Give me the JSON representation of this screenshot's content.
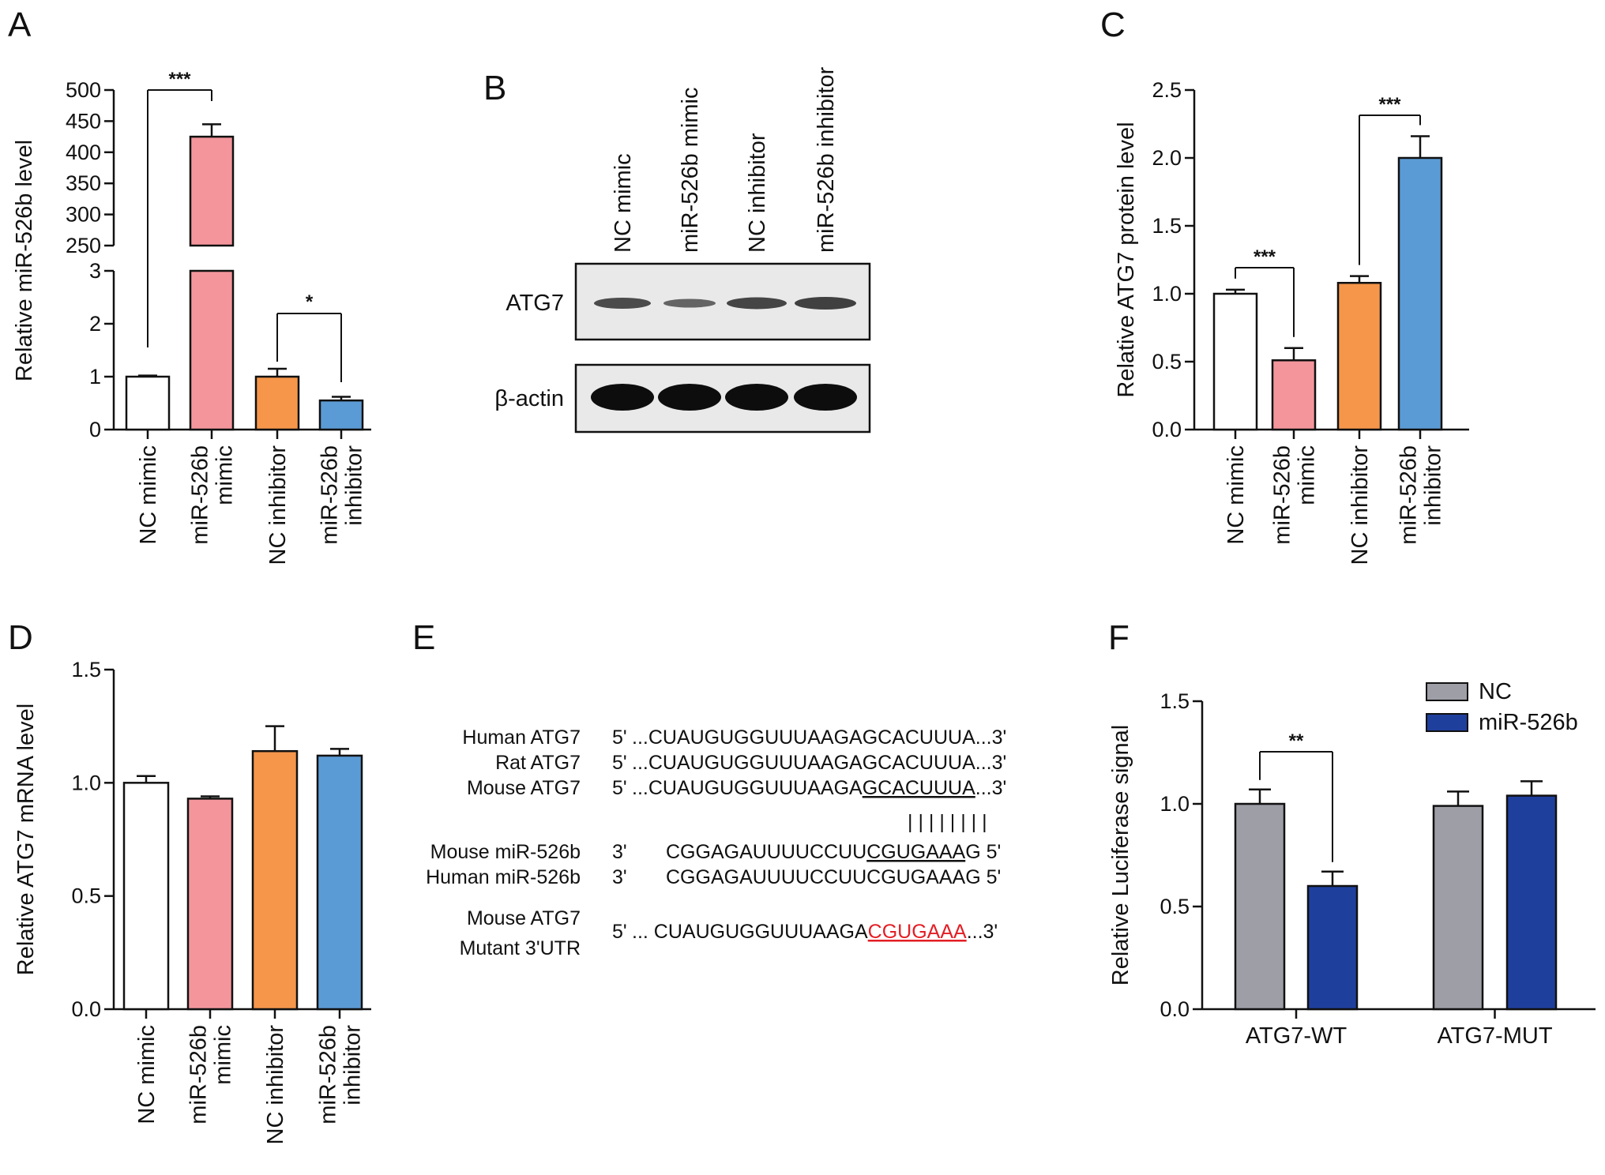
{
  "panels": {
    "A": {
      "letter": "A",
      "chart_data": {
        "type": "bar",
        "ylabel": "Relative miR-526b level",
        "categories": [
          "NC mimic",
          "miR-526b mimic",
          "NC inhibitor",
          "miR-526b inhibitor"
        ],
        "category_lines": [
          [
            "NC mimic"
          ],
          [
            "miR-526b",
            "mimic"
          ],
          [
            "NC inhibitor"
          ],
          [
            "miR-526b",
            "inhibitor"
          ]
        ],
        "values": [
          1.0,
          425,
          1.0,
          0.55
        ],
        "errors": [
          0.02,
          20,
          0.15,
          0.07
        ],
        "colors": [
          "#ffffff",
          "#f4959c",
          "#f5964a",
          "#5b9bd5"
        ],
        "broken_axis": true,
        "ylim_lower": [
          0,
          3
        ],
        "yticks_lower": [
          "0",
          "1",
          "2",
          "3"
        ],
        "ylim_upper": [
          250,
          500
        ],
        "yticks_upper": [
          "250",
          "300",
          "350",
          "400",
          "450",
          "500"
        ],
        "significance": [
          {
            "from": 0,
            "to": 1,
            "label": "***"
          },
          {
            "from": 2,
            "to": 3,
            "label": "*"
          }
        ]
      }
    },
    "B": {
      "letter": "B",
      "lanes": [
        "NC mimic",
        "miR-526b mimic",
        "NC inhibitor",
        "miR-526b inhibitor"
      ],
      "blot_labels": [
        "ATG7",
        "β-actin"
      ]
    },
    "C": {
      "letter": "C",
      "chart_data": {
        "type": "bar",
        "ylabel": "Relative ATG7 protein level",
        "categories": [
          "NC mimic",
          "miR-526b mimic",
          "NC inhibitor",
          "miR-526b inhibitor"
        ],
        "category_lines": [
          [
            "NC mimic"
          ],
          [
            "miR-526b",
            "mimic"
          ],
          [
            "NC inhibitor"
          ],
          [
            "miR-526b",
            "inhibitor"
          ]
        ],
        "values": [
          1.0,
          0.51,
          1.08,
          2.0
        ],
        "errors": [
          0.03,
          0.09,
          0.05,
          0.16
        ],
        "colors": [
          "#ffffff",
          "#f4959c",
          "#f5964a",
          "#5b9bd5"
        ],
        "ylim": [
          0,
          2.5
        ],
        "yticks": [
          "0.0",
          "0.5",
          "1.0",
          "1.5",
          "2.0",
          "2.5"
        ],
        "significance": [
          {
            "from": 0,
            "to": 1,
            "label": "***"
          },
          {
            "from": 2,
            "to": 3,
            "label": "***"
          }
        ]
      }
    },
    "D": {
      "letter": "D",
      "chart_data": {
        "type": "bar",
        "ylabel": "Relative ATG7 mRNA level",
        "categories": [
          "NC mimic",
          "miR-526b mimic",
          "NC inhibitor",
          "miR-526b inhibitor"
        ],
        "category_lines": [
          [
            "NC mimic"
          ],
          [
            "miR-526b",
            "mimic"
          ],
          [
            "NC inhibitor"
          ],
          [
            "miR-526b",
            "inhibitor"
          ]
        ],
        "values": [
          1.0,
          0.93,
          1.14,
          1.12
        ],
        "errors": [
          0.03,
          0.01,
          0.11,
          0.03
        ],
        "colors": [
          "#ffffff",
          "#f4959c",
          "#f5964a",
          "#5b9bd5"
        ],
        "ylim": [
          0,
          1.5
        ],
        "yticks": [
          "0.0",
          "0.5",
          "1.0",
          "1.5"
        ],
        "significance": []
      }
    },
    "E": {
      "letter": "E",
      "rows": [
        {
          "name": "Human ATG7",
          "prefix": "5'",
          "seq": "...CUAUGUGGUUUAAGAGCACUUUA...3'"
        },
        {
          "name": "Rat ATG7",
          "prefix": "5'",
          "seq": "...CUAUGUGGUUUAAGAGCACUUUA...3'"
        },
        {
          "name": "Mouse ATG7",
          "prefix": "5'",
          "seq_before": "...CUAUGUGGUUUAAGA",
          "seq_underlined": "GCACUUUA",
          "seq_after": "...3'"
        },
        {
          "name": "Mouse miR-526b",
          "prefix": "3'",
          "seq_before": "CGGAGAUUUUCCUU",
          "seq_underlined": "CGUGAAA",
          "seq_after": "G 5'"
        },
        {
          "name": "Human miR-526b",
          "prefix": "3'",
          "seq": "CGGAGAUUUUCCUUCGUGAAAG 5'"
        },
        {
          "name_line1": "Mouse ATG7",
          "name_line2": "Mutant 3'UTR",
          "prefix": "5'",
          "seq_before": "... CUAUGUGGUUUAAGA",
          "seq_mutant": "CGUGAAA",
          "seq_after": "...3'"
        }
      ],
      "pairing": "| | | | | | | |"
    },
    "F": {
      "letter": "F",
      "chart_data": {
        "type": "bar",
        "ylabel": "Relative Luciferase signal",
        "categories": [
          "ATG7-WT",
          "ATG7-MUT"
        ],
        "series": [
          {
            "name": "NC",
            "color": "#9d9ea6",
            "values": [
              1.0,
              0.99
            ],
            "errors": [
              0.07,
              0.07
            ]
          },
          {
            "name": "miR-526b",
            "color": "#1f3f9c",
            "values": [
              0.6,
              1.04
            ],
            "errors": [
              0.07,
              0.07
            ]
          }
        ],
        "ylim": [
          0,
          1.5
        ],
        "yticks": [
          "0.0",
          "0.5",
          "1.0",
          "1.5"
        ],
        "legend": "top-right",
        "significance": [
          {
            "category": 0,
            "label": "**"
          }
        ]
      }
    }
  }
}
